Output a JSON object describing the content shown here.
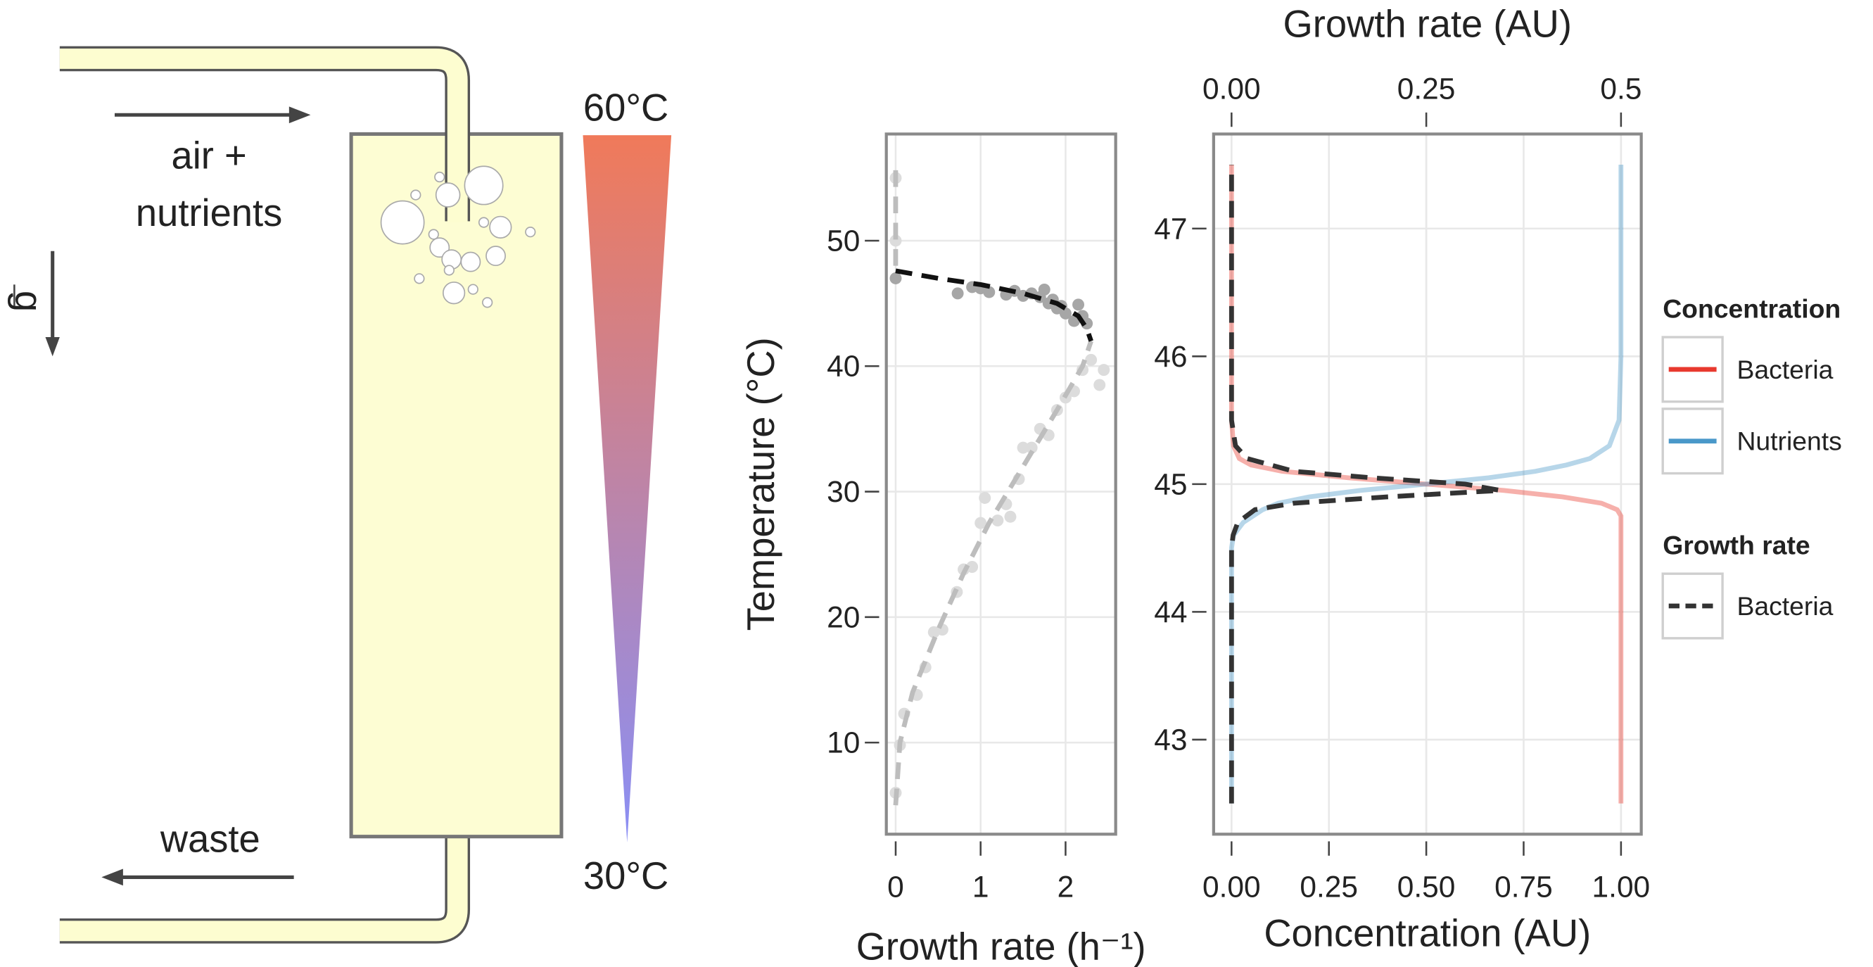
{
  "diagram": {
    "inlet_label_1": "air +",
    "inlet_label_2": "nutrients",
    "outlet_label": "waste",
    "gravity_label": "g",
    "top_temperature": "60°C",
    "bottom_temperature": "30°C",
    "top_color": "#e8392e",
    "bottom_color": "#4a98c9"
  },
  "chart_data": [
    {
      "type": "scatter",
      "xlabel": "Growth rate (h⁻¹)",
      "ylabel": "Temperature (°C)",
      "xlim": [
        -0.11,
        2.59
      ],
      "ylim": [
        2.7,
        58.5
      ],
      "xticks": [
        0,
        1,
        2
      ],
      "yticks": [
        10,
        20,
        30,
        40,
        50
      ],
      "grid": true,
      "series": [
        {
          "kind": "points",
          "color": "#a6a6a6",
          "x": [
            0.0,
            0.73,
            0.9,
            1.0,
            1.1,
            1.3,
            1.4,
            1.5,
            1.6,
            1.7,
            1.75,
            1.8,
            1.85,
            1.9,
            1.95,
            2.0,
            2.1,
            2.15,
            2.2,
            2.25
          ],
          "values": [
            47.0,
            45.8,
            46.3,
            46.2,
            45.9,
            45.7,
            46.0,
            45.6,
            45.8,
            45.5,
            46.1,
            45.0,
            45.3,
            44.6,
            44.8,
            44.2,
            43.6,
            44.9,
            44.0,
            43.4
          ]
        },
        {
          "kind": "points",
          "color": "#dcdcdc",
          "x": [
            0.0,
            0.0,
            0.0,
            0.05,
            0.1,
            0.25,
            0.35,
            0.45,
            0.55,
            0.72,
            0.8,
            0.9,
            1.0,
            1.05,
            1.2,
            1.3,
            1.35,
            1.45,
            1.5,
            1.6,
            1.7,
            1.8,
            1.9,
            2.0,
            2.1,
            2.2,
            2.3,
            2.4,
            2.45
          ],
          "values": [
            6.0,
            50.0,
            55.0,
            9.8,
            12.3,
            13.8,
            16.0,
            18.8,
            19.0,
            22.0,
            23.8,
            24.0,
            27.5,
            29.5,
            27.7,
            29.0,
            28.0,
            31.0,
            33.5,
            33.5,
            35.0,
            34.5,
            36.5,
            37.5,
            38.0,
            39.7,
            40.5,
            38.5,
            39.7
          ]
        },
        {
          "kind": "dashed-line",
          "color": "#bdbdbd",
          "x": [
            0.0,
            0.05,
            0.2,
            0.5,
            0.8,
            1.1,
            1.5,
            1.9,
            2.2,
            2.3
          ],
          "values": [
            5.0,
            10.0,
            14.0,
            19.0,
            23.5,
            27.5,
            32.0,
            36.5,
            40.0,
            42.0
          ]
        },
        {
          "kind": "dashed-line",
          "color": "#bdbdbd",
          "x": [
            0.0,
            0.0
          ],
          "values": [
            48.0,
            56.0
          ]
        },
        {
          "kind": "dashed-line",
          "color": "#111111",
          "x": [
            0.0,
            0.5,
            1.0,
            1.5,
            1.9,
            2.15,
            2.25,
            2.3
          ],
          "values": [
            47.6,
            47.0,
            46.5,
            45.8,
            45.0,
            44.0,
            43.0,
            42.0
          ]
        }
      ]
    },
    {
      "type": "line",
      "xlabel": "Concentration (AU)",
      "x2label": "Growth rate (AU)",
      "xlim": [
        -0.046,
        1.052
      ],
      "x2lim": [
        -0.023,
        0.526
      ],
      "ylim": [
        42.26,
        47.74
      ],
      "xticks": [
        {
          "value": 0,
          "label": "0.00"
        },
        0.25,
        {
          "value": 0.5,
          "label": "0.50"
        },
        0.75,
        {
          "value": 1,
          "label": "1.00"
        }
      ],
      "x2ticks": [
        {
          "value": 0,
          "label": "0.00"
        },
        0.25,
        0.5
      ],
      "yticks": [
        43,
        44,
        45,
        46,
        47
      ],
      "grid": true,
      "legend": "right",
      "legend_titles": [
        "Concentration",
        "Growth rate"
      ],
      "series": [
        {
          "name": "Bacteria",
          "color": "#e8392e",
          "style": "solid",
          "x": [
            1,
            1,
            1,
            1,
            1,
            0.99,
            0.95,
            0.85,
            0.7,
            0.5,
            0.3,
            0.13,
            0.05,
            0.02,
            0.005,
            0,
            0,
            0,
            0,
            0
          ],
          "values": [
            42.5,
            43.5,
            44.5,
            44.7,
            44.75,
            44.8,
            44.85,
            44.9,
            44.95,
            45.0,
            45.05,
            45.1,
            45.15,
            45.2,
            45.3,
            45.5,
            46.0,
            46.5,
            47.0,
            47.5
          ]
        },
        {
          "name": "Nutrients",
          "color": "#4a98c9",
          "style": "solid",
          "x": [
            0,
            0,
            0.005,
            0.03,
            0.08,
            0.12,
            0.2,
            0.33,
            0.5,
            0.66,
            0.78,
            0.86,
            0.92,
            0.97,
            0.995,
            1,
            1
          ],
          "values": [
            42.5,
            44.5,
            44.6,
            44.7,
            44.8,
            44.85,
            44.9,
            44.95,
            45.0,
            45.05,
            45.1,
            45.15,
            45.2,
            45.3,
            45.5,
            46.0,
            47.5
          ]
        },
        {
          "name": "Bacteria",
          "color": "#333333",
          "style": "dashed",
          "axis": "x2",
          "x": [
            0,
            0,
            0.002,
            0.008,
            0.03,
            0.08,
            0.2,
            0.345,
            0.3,
            0.18,
            0.08,
            0.02,
            0.005,
            0,
            0
          ],
          "values": [
            42.5,
            44.5,
            44.6,
            44.7,
            44.8,
            44.85,
            44.9,
            44.95,
            45.0,
            45.05,
            45.1,
            45.2,
            45.3,
            45.5,
            47.5
          ]
        }
      ]
    }
  ]
}
